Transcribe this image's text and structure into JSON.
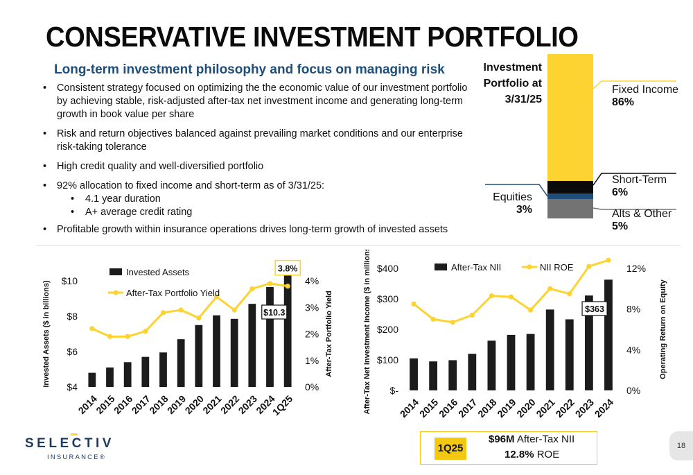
{
  "header": {
    "title": "CONSERVATIVE INVESTMENT PORTFOLIO",
    "subtitle": "Long-term investment philosophy and focus on managing risk"
  },
  "bullets": [
    "Consistent strategy focused on optimizing the the economic value of our investment portfolio by achieving stable, risk-adjusted after-tax net investment income and generating long-term growth in book value per share",
    "Risk and return objectives balanced against prevailing market conditions and our enterprise risk-taking tolerance",
    "High credit quality and well-diversified portfolio",
    "92% allocation to fixed income and short-term as of 3/31/25:",
    "Profitable growth within insurance operations drives long-term growth of invested assets"
  ],
  "sub_bullets": [
    "4.1 year duration",
    "A+ average credit rating"
  ],
  "allocation": {
    "heading_lines": [
      "Investment",
      "Portfolio at",
      "3/31/25"
    ],
    "segments": [
      {
        "name": "Fixed Income",
        "pct": "86%",
        "value": 86,
        "color": "#fdd332"
      },
      {
        "name": "Short-Term",
        "pct": "6%",
        "value": 6,
        "color": "#0a0a0a"
      },
      {
        "name": "Equities",
        "pct": "3%",
        "value": 3,
        "color": "#1f4e79"
      },
      {
        "name": "Alts & Other",
        "pct": "5%",
        "value": 5,
        "color": "#737373"
      }
    ]
  },
  "chart_data": [
    {
      "type": "bar",
      "categories": [
        "2014",
        "2015",
        "2016",
        "2017",
        "2018",
        "2019",
        "2020",
        "2021",
        "2022",
        "2023",
        "2024",
        "1Q25"
      ],
      "series": [
        {
          "name": "Invested Assets",
          "type": "bar",
          "axis": "left",
          "values": [
            4.8,
            5.1,
            5.4,
            5.7,
            5.95,
            6.7,
            7.5,
            8.05,
            7.85,
            8.7,
            9.65,
            10.3
          ]
        },
        {
          "name": "After-Tax Portfolio Yield",
          "type": "line",
          "axis": "right",
          "values": [
            2.2,
            1.9,
            1.9,
            2.1,
            2.8,
            2.9,
            2.6,
            3.4,
            2.9,
            3.7,
            3.9,
            3.8
          ]
        }
      ],
      "ylabel": "Invested Assets ($ in billions)",
      "y2label": "After-Tax Portfolio Yield",
      "ylim": [
        4,
        10
      ],
      "y2lim": [
        0,
        4
      ],
      "yticks": [
        "$4",
        "$6",
        "$8",
        "$10"
      ],
      "y2ticks": [
        "0%",
        "1%",
        "2%",
        "3%",
        "4%"
      ],
      "callouts": {
        "line": "3.8%",
        "bar": "$10.3"
      },
      "legend": "top-left"
    },
    {
      "type": "bar",
      "categories": [
        "2014",
        "2015",
        "2016",
        "2017",
        "2018",
        "2019",
        "2020",
        "2021",
        "2022",
        "2023",
        "2024"
      ],
      "series": [
        {
          "name": "After-Tax NII",
          "type": "bar",
          "axis": "left",
          "values": [
            105,
            95,
            99,
            120,
            163,
            182,
            185,
            265,
            233,
            311,
            363
          ]
        },
        {
          "name": "NII ROE",
          "type": "line",
          "axis": "right",
          "values": [
            8.5,
            7.0,
            6.7,
            7.4,
            9.3,
            9.2,
            7.9,
            10.0,
            9.5,
            12.2,
            12.8
          ]
        }
      ],
      "ylabel": "After-Tax Net Investment Income ($ in millions)",
      "y2label": "Operating Return on Equity",
      "ylim": [
        0,
        400
      ],
      "y2lim": [
        0,
        12
      ],
      "yticks": [
        "$-",
        "$100",
        "$200",
        "$300",
        "$400"
      ],
      "y2ticks": [
        "0%",
        "4%",
        "8%",
        "12%"
      ],
      "callouts": {
        "line": "12.8%",
        "bar": "$363"
      },
      "legend": "top"
    }
  ],
  "quarter_box": {
    "tag": "1Q25",
    "nii_value": "$96M",
    "nii_label": " After-Tax NII",
    "roe_value": "12.8%",
    "roe_label": " ROE"
  },
  "logo": {
    "name": "SELECTIVE",
    "tagline": "INSURANCE®"
  },
  "page_number": "18",
  "colors": {
    "accent_yellow": "#fdd332",
    "navy": "#1f4e79",
    "bar_black": "#1c1c1c"
  }
}
